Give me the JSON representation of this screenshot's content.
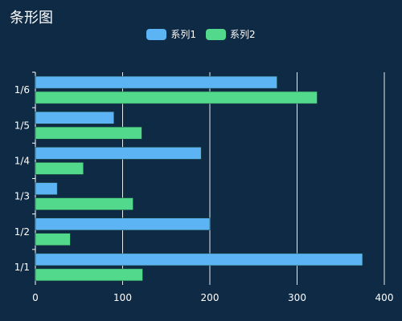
{
  "chart_data": {
    "type": "bar",
    "orientation": "horizontal",
    "title": "条形图",
    "categories": [
      "1/1",
      "1/2",
      "1/3",
      "1/4",
      "1/5",
      "1/6"
    ],
    "series": [
      {
        "name": "系列1",
        "color": "#5db4f5",
        "values": [
          375,
          200,
          25,
          190,
          90,
          277
        ]
      },
      {
        "name": "系列2",
        "color": "#52d98b",
        "values": [
          123,
          40,
          112,
          55,
          122,
          323
        ]
      }
    ],
    "xlim": [
      0,
      400
    ],
    "xticks": [
      0,
      100,
      200,
      300,
      400
    ],
    "grid": true,
    "legend_position": "top-center"
  }
}
